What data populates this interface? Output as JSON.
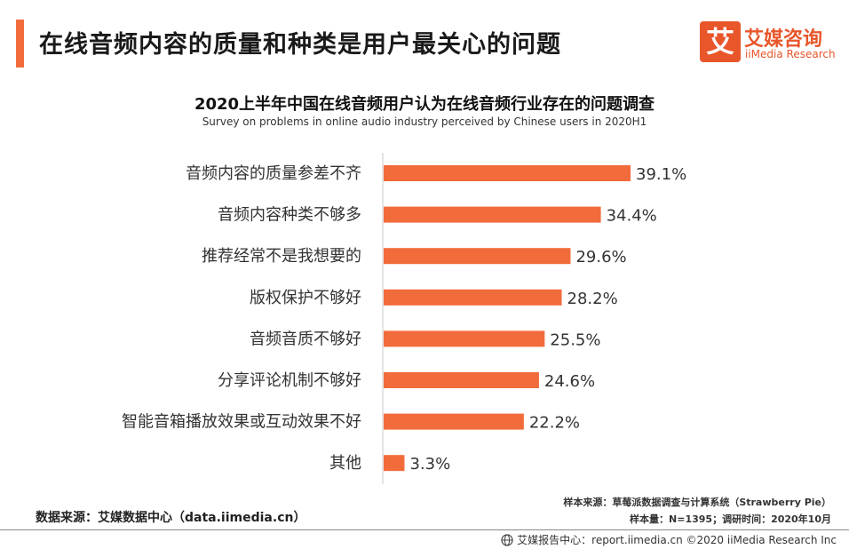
{
  "header": {
    "title": "在线音频内容的质量和种类是用户最关心的问题",
    "accent_color": "#f26b3a"
  },
  "logo": {
    "mark_char": "艾",
    "name_cn": "艾媒咨询",
    "name_en": "iiMedia Research",
    "color": "#e8562a"
  },
  "chart_data": {
    "type": "bar",
    "orientation": "horizontal",
    "title": "2020上半年中国在线音频用户认为在线音频行业存在的问题调查",
    "subtitle": "Survey on problems in online audio industry perceived by Chinese users in 2020H1",
    "categories": [
      "音频内容的质量参差不齐",
      "音频内容种类不够多",
      "推荐经常不是我想要的",
      "版权保护不够好",
      "音频音质不够好",
      "分享评论机制不够好",
      "智能音箱播放效果或互动效果不好",
      "其他"
    ],
    "values": [
      39.1,
      34.4,
      29.6,
      28.2,
      25.5,
      24.6,
      22.2,
      3.3
    ],
    "value_labels": [
      "39.1%",
      "34.4%",
      "29.6%",
      "28.2%",
      "25.5%",
      "24.6%",
      "22.2%",
      "3.3%"
    ],
    "xlim": [
      0,
      45
    ],
    "bar_color": "#f26b3a",
    "grid": false,
    "legend": "none"
  },
  "notes": {
    "sample_source": "样本来源：草莓派数据调查与计算系统（Strawberry Pie）",
    "sample_info": "样本量：N=1395；调研时间：2020年10月"
  },
  "source": "数据来源：艾媒数据中心（data.iimedia.cn）",
  "footer": {
    "text": "艾媒报告中心：report.iimedia.cn   ©2020  iiMedia Research  Inc",
    "icon": "globe-icon"
  }
}
